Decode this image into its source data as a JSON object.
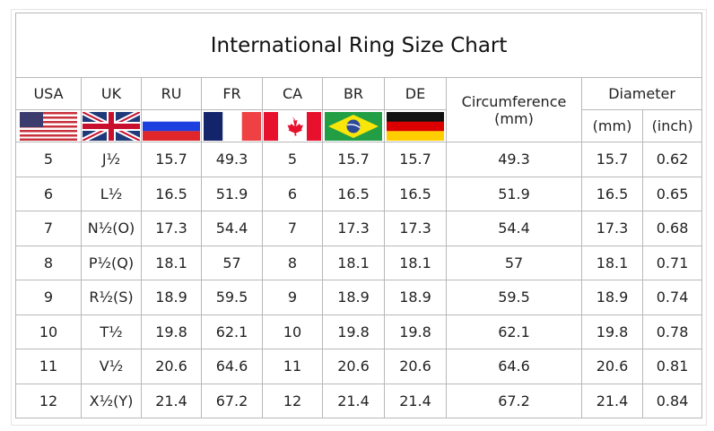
{
  "title": "International Ring Size Chart",
  "headers": {
    "usa": "USA",
    "uk": "UK",
    "ru": "RU",
    "fr": "FR",
    "ca": "CA",
    "br": "BR",
    "de": "DE",
    "circumference": "Circumference",
    "circumference_unit": "(mm)",
    "diameter": "Diameter",
    "diameter_mm": "(mm)",
    "diameter_inch": "(inch)"
  },
  "flags": [
    "usa-flag-icon",
    "uk-flag-icon",
    "russia-flag-icon",
    "france-flag-icon",
    "canada-flag-icon",
    "brazil-flag-icon",
    "germany-flag-icon"
  ],
  "rows": [
    [
      "5",
      "J½",
      "15.7",
      "49.3",
      "5",
      "15.7",
      "15.7",
      "49.3",
      "15.7",
      "0.62"
    ],
    [
      "6",
      "L½",
      "16.5",
      "51.9",
      "6",
      "16.5",
      "16.5",
      "51.9",
      "16.5",
      "0.65"
    ],
    [
      "7",
      "N½(O)",
      "17.3",
      "54.4",
      "7",
      "17.3",
      "17.3",
      "54.4",
      "17.3",
      "0.68"
    ],
    [
      "8",
      "P½(Q)",
      "18.1",
      "57",
      "8",
      "18.1",
      "18.1",
      "57",
      "18.1",
      "0.71"
    ],
    [
      "9",
      "R½(S)",
      "18.9",
      "59.5",
      "9",
      "18.9",
      "18.9",
      "59.5",
      "18.9",
      "0.74"
    ],
    [
      "10",
      "T½",
      "19.8",
      "62.1",
      "10",
      "19.8",
      "19.8",
      "62.1",
      "19.8",
      "0.78"
    ],
    [
      "11",
      "V½",
      "20.6",
      "64.6",
      "11",
      "20.6",
      "20.6",
      "64.6",
      "20.6",
      "0.81"
    ],
    [
      "12",
      "X½(Y)",
      "21.4",
      "67.2",
      "12",
      "21.4",
      "21.4",
      "67.2",
      "21.4",
      "0.84"
    ]
  ]
}
